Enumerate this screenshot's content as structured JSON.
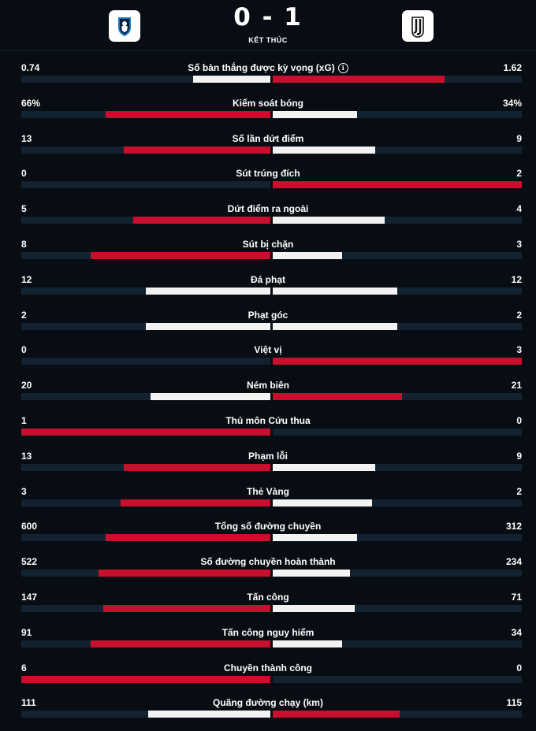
{
  "match": {
    "home_score": "0",
    "separator": "-",
    "away_score": "1",
    "status": "KẾT THÚC",
    "home_logo": "atalanta-logo-icon",
    "away_logo": "juventus-logo-icon"
  },
  "colors": {
    "background": "#070d13",
    "track": "#132231",
    "leader": "#c8102e",
    "trailer": "#f2f2f2"
  },
  "stats": [
    {
      "label": "Số bàn thắng được kỳ vọng (xG)",
      "home": "0.74",
      "away": "1.62",
      "home_frac": 0.31,
      "away_frac": 0.69,
      "info": true
    },
    {
      "label": "Kiểm soát bóng",
      "home": "66%",
      "away": "34%",
      "home_frac": 0.66,
      "away_frac": 0.34
    },
    {
      "label": "Số lần dứt điểm",
      "home": "13",
      "away": "9",
      "home_frac": 0.59,
      "away_frac": 0.41
    },
    {
      "label": "Sút trúng đích",
      "home": "0",
      "away": "2",
      "home_frac": 0,
      "away_frac": 1
    },
    {
      "label": "Dứt điểm ra ngoài",
      "home": "5",
      "away": "4",
      "home_frac": 0.55,
      "away_frac": 0.45
    },
    {
      "label": "Sút bị chặn",
      "home": "8",
      "away": "3",
      "home_frac": 0.72,
      "away_frac": 0.28
    },
    {
      "label": "Đá phạt",
      "home": "12",
      "away": "12",
      "home_frac": 0.5,
      "away_frac": 0.5
    },
    {
      "label": "Phạt góc",
      "home": "2",
      "away": "2",
      "home_frac": 0.5,
      "away_frac": 0.5
    },
    {
      "label": "Việt vị",
      "home": "0",
      "away": "3",
      "home_frac": 0,
      "away_frac": 1
    },
    {
      "label": "Ném biên",
      "home": "20",
      "away": "21",
      "home_frac": 0.48,
      "away_frac": 0.52
    },
    {
      "label": "Thủ môn Cứu thua",
      "home": "1",
      "away": "0",
      "home_frac": 1,
      "away_frac": 0
    },
    {
      "label": "Phạm lỗi",
      "home": "13",
      "away": "9",
      "home_frac": 0.59,
      "away_frac": 0.41
    },
    {
      "label": "Thẻ Vàng",
      "home": "3",
      "away": "2",
      "home_frac": 0.6,
      "away_frac": 0.4
    },
    {
      "label": "Tổng số đường chuyền",
      "home": "600",
      "away": "312",
      "home_frac": 0.66,
      "away_frac": 0.34
    },
    {
      "label": "Số đường chuyền hoàn thành",
      "home": "522",
      "away": "234",
      "home_frac": 0.69,
      "away_frac": 0.31
    },
    {
      "label": "Tấn công",
      "home": "147",
      "away": "71",
      "home_frac": 0.67,
      "away_frac": 0.33
    },
    {
      "label": "Tấn công nguy hiểm",
      "home": "91",
      "away": "34",
      "home_frac": 0.72,
      "away_frac": 0.28
    },
    {
      "label": "Chuyền thành công",
      "home": "6",
      "away": "0",
      "home_frac": 1,
      "away_frac": 0
    },
    {
      "label": "Quãng đường chạy (km)",
      "home": "111",
      "away": "115",
      "home_frac": 0.49,
      "away_frac": 0.51
    }
  ]
}
